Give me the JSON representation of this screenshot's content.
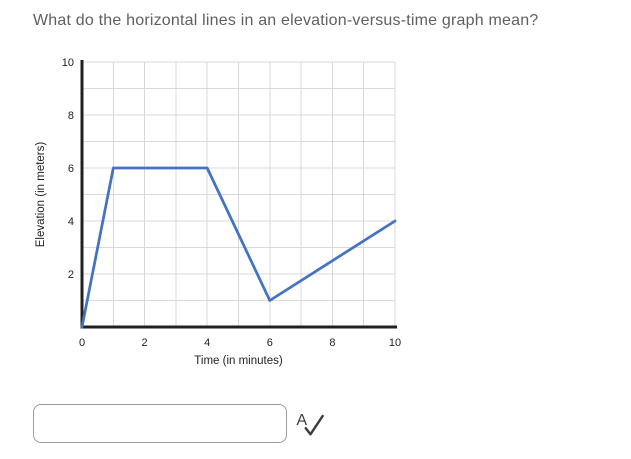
{
  "question": {
    "title": "What do the horizontal lines in an elevation-versus-time graph mean?"
  },
  "answer": {
    "value": "",
    "spellcheck_letter": "A"
  },
  "colors": {
    "line": "#4472C4",
    "grid": "#D9D9D9",
    "axis": "#212121",
    "chart_text": "#1F1F1F",
    "question_text": "#5D5F61",
    "input_border": "#9B9B9B",
    "icon": "#3D3D3D"
  },
  "chart_data": {
    "type": "line",
    "title": "",
    "xlabel": "Time (in minutes)",
    "ylabel": "Elevation (in meters)",
    "x": [
      0,
      1,
      4,
      6,
      10
    ],
    "y": [
      0,
      6,
      6,
      1,
      4
    ],
    "xlim": [
      0,
      10
    ],
    "ylim": [
      0,
      10
    ],
    "x_ticks": [
      0,
      2,
      4,
      6,
      8,
      10
    ],
    "y_ticks": [
      2,
      4,
      6,
      8,
      10
    ],
    "grid_step": 1,
    "grid": true,
    "legend": false,
    "line_color": "#4472C4"
  }
}
